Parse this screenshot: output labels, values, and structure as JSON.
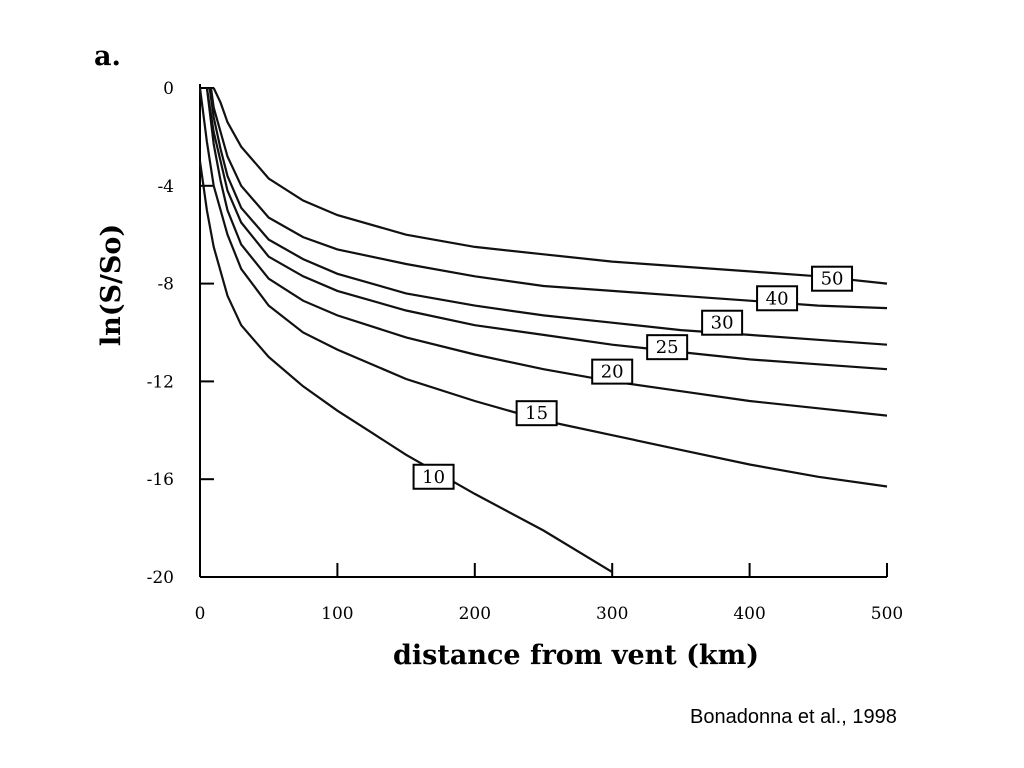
{
  "panel_tag": "a.",
  "citation": "Bonadonna et al., 1998",
  "chart_data": {
    "type": "line",
    "title": "",
    "xlabel": "distance from vent (km)",
    "ylabel": "ln(S/So)",
    "xlim": [
      0,
      500
    ],
    "ylim": [
      -20,
      0
    ],
    "xticks": [
      "0",
      "100",
      "200",
      "300",
      "400",
      "500"
    ],
    "yticks": [
      "0",
      "-4",
      "-8",
      "-12",
      "-16",
      "-20"
    ],
    "grid": false,
    "series": [
      {
        "name": "10",
        "label_at": [
          170,
          -15.9
        ],
        "x": [
          0,
          5,
          10,
          20,
          30,
          50,
          75,
          100,
          125,
          150,
          175,
          200,
          250,
          300
        ],
        "y": [
          -3.0,
          -5.0,
          -6.5,
          -8.5,
          -9.7,
          -11.0,
          -12.2,
          -13.2,
          -14.1,
          -15.0,
          -15.8,
          -16.6,
          -18.1,
          -19.8
        ]
      },
      {
        "name": "15",
        "label_at": [
          245,
          -13.3
        ],
        "x": [
          0,
          5,
          10,
          20,
          30,
          50,
          75,
          100,
          150,
          200,
          250,
          300,
          350,
          400,
          450,
          500
        ],
        "y": [
          0,
          -2.2,
          -4.0,
          -6.0,
          -7.4,
          -8.9,
          -10.0,
          -10.7,
          -11.9,
          -12.8,
          -13.6,
          -14.2,
          -14.8,
          -15.4,
          -15.9,
          -16.3
        ]
      },
      {
        "name": "20",
        "label_at": [
          300,
          -11.6
        ],
        "x": [
          5,
          10,
          15,
          20,
          30,
          50,
          75,
          100,
          150,
          200,
          250,
          300,
          350,
          400,
          450,
          500
        ],
        "y": [
          0,
          -2.3,
          -3.8,
          -5.0,
          -6.4,
          -7.8,
          -8.7,
          -9.3,
          -10.2,
          -10.9,
          -11.5,
          -12.0,
          -12.4,
          -12.8,
          -13.1,
          -13.4
        ]
      },
      {
        "name": "25",
        "label_at": [
          340,
          -10.6
        ],
        "x": [
          5,
          10,
          15,
          20,
          30,
          50,
          75,
          100,
          150,
          200,
          250,
          300,
          350,
          400,
          450,
          500
        ],
        "y": [
          0,
          -1.8,
          -3.0,
          -4.2,
          -5.5,
          -6.9,
          -7.7,
          -8.3,
          -9.1,
          -9.7,
          -10.1,
          -10.5,
          -10.8,
          -11.1,
          -11.3,
          -11.5
        ]
      },
      {
        "name": "30",
        "label_at": [
          380,
          -9.6
        ],
        "x": [
          7,
          10,
          15,
          20,
          30,
          50,
          75,
          100,
          150,
          200,
          250,
          300,
          350,
          400,
          450,
          500
        ],
        "y": [
          0,
          -1.2,
          -2.5,
          -3.6,
          -4.9,
          -6.2,
          -7.0,
          -7.6,
          -8.4,
          -8.9,
          -9.3,
          -9.6,
          -9.9,
          -10.1,
          -10.3,
          -10.5
        ]
      },
      {
        "name": "40",
        "label_at": [
          420,
          -8.6
        ],
        "x": [
          8,
          10,
          15,
          20,
          30,
          50,
          75,
          100,
          150,
          200,
          250,
          300,
          350,
          400,
          450,
          500
        ],
        "y": [
          0,
          -0.8,
          -1.8,
          -2.8,
          -4.0,
          -5.3,
          -6.1,
          -6.6,
          -7.2,
          -7.7,
          -8.1,
          -8.3,
          -8.5,
          -8.7,
          -8.9,
          -9.0
        ]
      },
      {
        "name": "50",
        "label_at": [
          460,
          -7.8
        ],
        "x": [
          10,
          15,
          20,
          30,
          50,
          75,
          100,
          150,
          200,
          250,
          300,
          350,
          400,
          450,
          500
        ],
        "y": [
          0,
          -0.6,
          -1.4,
          -2.4,
          -3.7,
          -4.6,
          -5.2,
          -6.0,
          -6.5,
          -6.8,
          -7.1,
          -7.3,
          -7.5,
          -7.7,
          -8.0
        ]
      }
    ]
  }
}
